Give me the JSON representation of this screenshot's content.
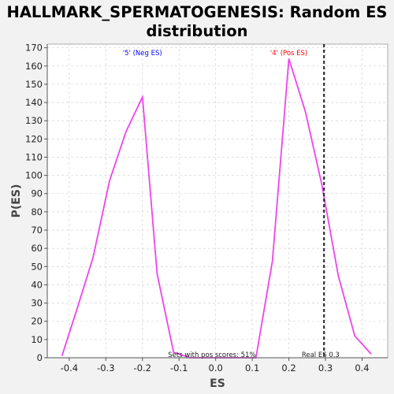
{
  "chart_data": {
    "type": "line",
    "title_line1": "HALLMARK_SPERMATOGENESIS: Random ES",
    "title_line2": "distribution",
    "xlabel": "ES",
    "ylabel": "P(ES)",
    "xlim": [
      -0.46,
      0.47
    ],
    "ylim": [
      0,
      172
    ],
    "xticks": [
      -0.4,
      -0.3,
      -0.2,
      -0.1,
      0.0,
      0.1,
      0.2,
      0.3,
      0.4
    ],
    "xtick_labels": [
      "-0.4",
      "-0.3",
      "-0.2",
      "-0.1",
      "0.0",
      "0.1",
      "0.2",
      "0.3",
      "0.4"
    ],
    "yticks": [
      0,
      10,
      20,
      30,
      40,
      50,
      60,
      70,
      80,
      90,
      100,
      110,
      120,
      130,
      140,
      150,
      160,
      170
    ],
    "grid": true,
    "series": [
      {
        "color": "#ee44ee",
        "points": [
          [
            -0.42,
            1
          ],
          [
            -0.38,
            26
          ],
          [
            -0.335,
            55
          ],
          [
            -0.29,
            97
          ],
          [
            -0.245,
            124
          ],
          [
            -0.2,
            143
          ],
          [
            -0.16,
            46
          ],
          [
            -0.115,
            3
          ],
          [
            -0.07,
            0
          ],
          [
            0.11,
            0
          ],
          [
            0.155,
            53
          ],
          [
            0.2,
            164
          ],
          [
            0.245,
            135
          ],
          [
            0.29,
            95
          ],
          [
            0.335,
            45
          ],
          [
            0.38,
            12
          ],
          [
            0.425,
            2
          ]
        ]
      }
    ],
    "real_es": 0.296,
    "real_es_label": "Real ES 0.3",
    "neg_label": "'5' (Neg ES)",
    "neg_label_color": "#0000ff",
    "neg_label_x": -0.2,
    "pos_label": "'4' (Pos ES)",
    "pos_label_color": "#ff0000",
    "pos_label_x": 0.2,
    "footnote": "Sets with pos scores: 51%",
    "footnote_x": -0.13,
    "real_es_label_x": 0.235
  }
}
